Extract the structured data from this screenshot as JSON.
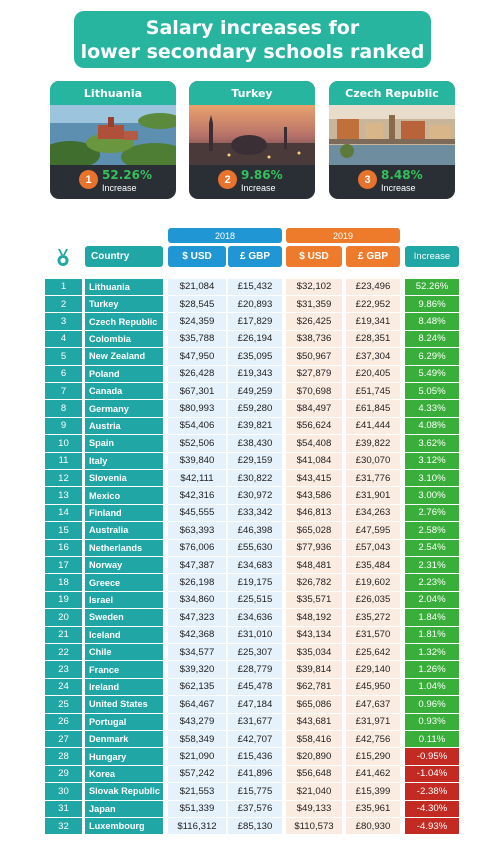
{
  "title": {
    "line1": "Salary increases for",
    "line2": "lower secondary schools ranked"
  },
  "colors": {
    "teal": "#28b5a0",
    "blue": "#2196d4",
    "orange": "#ee7a2c",
    "green": "#3aae3b",
    "red": "#c22a22"
  },
  "top3": [
    {
      "country": "Lithuania",
      "rank": "1",
      "increase": "52.26%",
      "sub": "Increase"
    },
    {
      "country": "Turkey",
      "rank": "2",
      "increase": "9.86%",
      "sub": "Increase"
    },
    {
      "country": "Czech Republic",
      "rank": "3",
      "increase": "8.48%",
      "sub": "Increase"
    }
  ],
  "table": {
    "year_2018": "2018",
    "year_2019": "2019",
    "headers": {
      "country": "Country",
      "usd_2018": "$ USD",
      "gbp_2018": "£ GBP",
      "usd_2019": "$ USD",
      "gbp_2019": "£ GBP",
      "increase": "Increase"
    },
    "medal_icon": "medal-icon",
    "rows": [
      {
        "rank": "1",
        "country": "Lithuania",
        "usd18": "$21,084",
        "gbp18": "£15,432",
        "usd19": "$32,102",
        "gbp19": "£23,496",
        "inc": "52.26%",
        "neg": false
      },
      {
        "rank": "2",
        "country": "Turkey",
        "usd18": "$28,545",
        "gbp18": "£20,893",
        "usd19": "$31,359",
        "gbp19": "£22,952",
        "inc": "9.86%",
        "neg": false
      },
      {
        "rank": "3",
        "country": "Czech Republic",
        "usd18": "$24,359",
        "gbp18": "£17,829",
        "usd19": "$26,425",
        "gbp19": "£19,341",
        "inc": "8.48%",
        "neg": false
      },
      {
        "rank": "4",
        "country": "Colombia",
        "usd18": "$35,788",
        "gbp18": "£26,194",
        "usd19": "$38,736",
        "gbp19": "£28,351",
        "inc": "8.24%",
        "neg": false
      },
      {
        "rank": "5",
        "country": "New Zealand",
        "usd18": "$47,950",
        "gbp18": "£35,095",
        "usd19": "$50,967",
        "gbp19": "£37,304",
        "inc": "6.29%",
        "neg": false
      },
      {
        "rank": "6",
        "country": "Poland",
        "usd18": "$26,428",
        "gbp18": "£19,343",
        "usd19": "$27,879",
        "gbp19": "£20,405",
        "inc": "5.49%",
        "neg": false
      },
      {
        "rank": "7",
        "country": "Canada",
        "usd18": "$67,301",
        "gbp18": "£49,259",
        "usd19": "$70,698",
        "gbp19": "£51,745",
        "inc": "5.05%",
        "neg": false
      },
      {
        "rank": "8",
        "country": "Germany",
        "usd18": "$80,993",
        "gbp18": "£59,280",
        "usd19": "$84,497",
        "gbp19": "£61,845",
        "inc": "4.33%",
        "neg": false
      },
      {
        "rank": "9",
        "country": "Austria",
        "usd18": "$54,406",
        "gbp18": "£39,821",
        "usd19": "$56,624",
        "gbp19": "£41,444",
        "inc": "4.08%",
        "neg": false
      },
      {
        "rank": "10",
        "country": "Spain",
        "usd18": "$52,506",
        "gbp18": "£38,430",
        "usd19": "$54,408",
        "gbp19": "£39,822",
        "inc": "3.62%",
        "neg": false
      },
      {
        "rank": "11",
        "country": "Italy",
        "usd18": "$39,840",
        "gbp18": "£29,159",
        "usd19": "$41,084",
        "gbp19": "£30,070",
        "inc": "3.12%",
        "neg": false
      },
      {
        "rank": "12",
        "country": "Slovenia",
        "usd18": "$42,111",
        "gbp18": "£30,822",
        "usd19": "$43,415",
        "gbp19": "£31,776",
        "inc": "3.10%",
        "neg": false
      },
      {
        "rank": "13",
        "country": "Mexico",
        "usd18": "$42,316",
        "gbp18": "£30,972",
        "usd19": "$43,586",
        "gbp19": "£31,901",
        "inc": "3.00%",
        "neg": false
      },
      {
        "rank": "14",
        "country": "Finland",
        "usd18": "$45,555",
        "gbp18": "£33,342",
        "usd19": "$46,813",
        "gbp19": "£34,263",
        "inc": "2.76%",
        "neg": false
      },
      {
        "rank": "15",
        "country": "Australia",
        "usd18": "$63,393",
        "gbp18": "£46,398",
        "usd19": "$65,028",
        "gbp19": "£47,595",
        "inc": "2.58%",
        "neg": false
      },
      {
        "rank": "16",
        "country": "Netherlands",
        "usd18": "$76,006",
        "gbp18": "£55,630",
        "usd19": "$77,936",
        "gbp19": "£57,043",
        "inc": "2.54%",
        "neg": false
      },
      {
        "rank": "17",
        "country": "Norway",
        "usd18": "$47,387",
        "gbp18": "£34,683",
        "usd19": "$48,481",
        "gbp19": "£35,484",
        "inc": "2.31%",
        "neg": false
      },
      {
        "rank": "18",
        "country": "Greece",
        "usd18": "$26,198",
        "gbp18": "£19,175",
        "usd19": "$26,782",
        "gbp19": "£19,602",
        "inc": "2.23%",
        "neg": false
      },
      {
        "rank": "19",
        "country": "Israel",
        "usd18": "$34,860",
        "gbp18": "£25,515",
        "usd19": "$35,571",
        "gbp19": "£26,035",
        "inc": "2.04%",
        "neg": false
      },
      {
        "rank": "20",
        "country": "Sweden",
        "usd18": "$47,323",
        "gbp18": "£34,636",
        "usd19": "$48,192",
        "gbp19": "£35,272",
        "inc": "1.84%",
        "neg": false
      },
      {
        "rank": "21",
        "country": "Iceland",
        "usd18": "$42,368",
        "gbp18": "£31,010",
        "usd19": "$43,134",
        "gbp19": "£31,570",
        "inc": "1.81%",
        "neg": false
      },
      {
        "rank": "22",
        "country": "Chile",
        "usd18": "$34,577",
        "gbp18": "£25,307",
        "usd19": "$35,034",
        "gbp19": "£25,642",
        "inc": "1.32%",
        "neg": false
      },
      {
        "rank": "23",
        "country": "France",
        "usd18": "$39,320",
        "gbp18": "£28,779",
        "usd19": "$39,814",
        "gbp19": "£29,140",
        "inc": "1.26%",
        "neg": false
      },
      {
        "rank": "24",
        "country": "Ireland",
        "usd18": "$62,135",
        "gbp18": "£45,478",
        "usd19": "$62,781",
        "gbp19": "£45,950",
        "inc": "1.04%",
        "neg": false
      },
      {
        "rank": "25",
        "country": "United States",
        "usd18": "$64,467",
        "gbp18": "£47,184",
        "usd19": "$65,086",
        "gbp19": "£47,637",
        "inc": "0.96%",
        "neg": false
      },
      {
        "rank": "26",
        "country": "Portugal",
        "usd18": "$43,279",
        "gbp18": "£31,677",
        "usd19": "$43,681",
        "gbp19": "£31,971",
        "inc": "0.93%",
        "neg": false
      },
      {
        "rank": "27",
        "country": "Denmark",
        "usd18": "$58,349",
        "gbp18": "£42,707",
        "usd19": "$58,416",
        "gbp19": "£42,756",
        "inc": "0.11%",
        "neg": false
      },
      {
        "rank": "28",
        "country": "Hungary",
        "usd18": "$21,090",
        "gbp18": "£15,436",
        "usd19": "$20,890",
        "gbp19": "£15,290",
        "inc": "-0.95%",
        "neg": true
      },
      {
        "rank": "29",
        "country": "Korea",
        "usd18": "$57,242",
        "gbp18": "£41,896",
        "usd19": "$56,648",
        "gbp19": "£41,462",
        "inc": "-1.04%",
        "neg": true
      },
      {
        "rank": "30",
        "country": "Slovak Republic",
        "usd18": "$21,553",
        "gbp18": "£15,775",
        "usd19": "$21,040",
        "gbp19": "£15,399",
        "inc": "-2.38%",
        "neg": true
      },
      {
        "rank": "31",
        "country": "Japan",
        "usd18": "$51,339",
        "gbp18": "£37,576",
        "usd19": "$49,133",
        "gbp19": "£35,961",
        "inc": "-4.30%",
        "neg": true
      },
      {
        "rank": "32",
        "country": "Luxembourg",
        "usd18": "$116,312",
        "gbp18": "£85,130",
        "usd19": "$110,573",
        "gbp19": "£80,930",
        "inc": "-4.93%",
        "neg": true
      }
    ]
  }
}
